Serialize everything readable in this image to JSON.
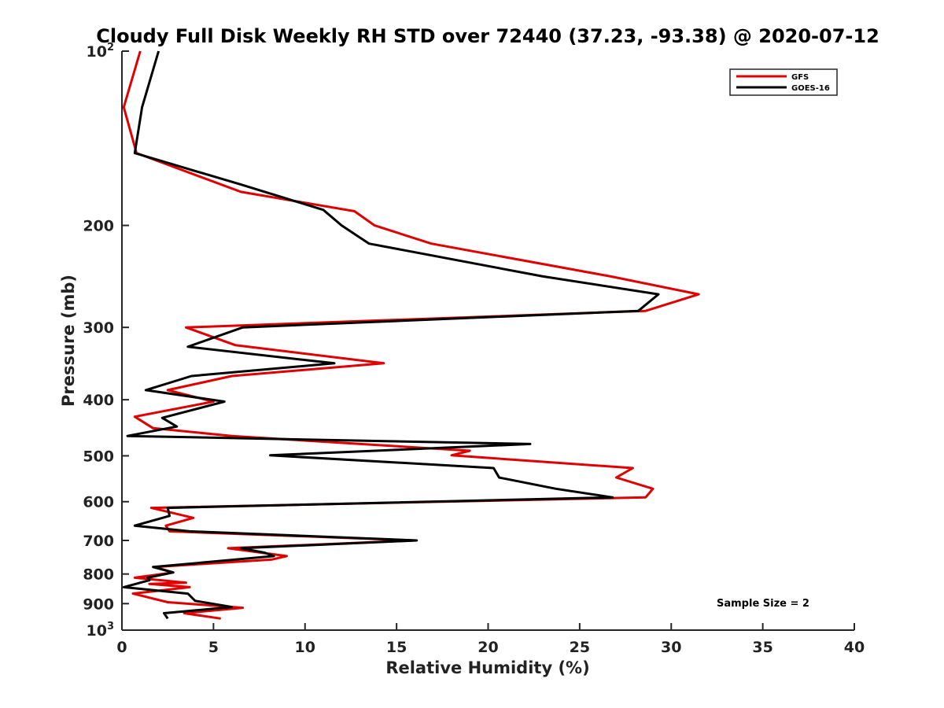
{
  "chart_data": {
    "type": "line",
    "title": "Cloudy Full Disk Weekly RH STD over 72440 (37.23, -93.38) @ 2020-07-12",
    "xlabel": "Relative Humidity (%)",
    "ylabel": "Pressure (mb)",
    "xlim": [
      0,
      40
    ],
    "ylim": [
      100,
      1000
    ],
    "y_scale": "log",
    "y_reversed": true,
    "grid": false,
    "legend_position": "top-right",
    "x_ticks": [
      "0",
      "5",
      "10",
      "15",
      "20",
      "25",
      "30",
      "35",
      "40"
    ],
    "y_ticks": [
      {
        "value": 100,
        "base": "10",
        "exp": "2"
      },
      {
        "value": 200,
        "label": "200"
      },
      {
        "value": 300,
        "label": "300"
      },
      {
        "value": 400,
        "label": "400"
      },
      {
        "value": 500,
        "label": "500"
      },
      {
        "value": 600,
        "label": "600"
      },
      {
        "value": 700,
        "label": "700"
      },
      {
        "value": 800,
        "label": "800"
      },
      {
        "value": 900,
        "label": "900"
      },
      {
        "value": 1000,
        "base": "10",
        "exp": "3"
      }
    ],
    "series": [
      {
        "name": "GFS",
        "color": "#e00000",
        "points": [
          [
            1.0,
            100
          ],
          [
            0.1,
            125
          ],
          [
            0.8,
            150
          ],
          [
            6.5,
            175
          ],
          [
            12.7,
            189
          ],
          [
            13.8,
            200
          ],
          [
            16.9,
            215
          ],
          [
            26.7,
            245
          ],
          [
            31.5,
            263
          ],
          [
            28.6,
            281
          ],
          [
            3.5,
            300
          ],
          [
            6.2,
            322
          ],
          [
            14.3,
            346
          ],
          [
            6.0,
            364
          ],
          [
            2.5,
            385
          ],
          [
            5.0,
            403
          ],
          [
            0.7,
            428
          ],
          [
            1.7,
            448
          ],
          [
            6.0,
            462
          ],
          [
            19.0,
            490
          ],
          [
            18.0,
            499
          ],
          [
            27.9,
            525
          ],
          [
            27.0,
            545
          ],
          [
            29.0,
            570
          ],
          [
            28.6,
            590
          ],
          [
            1.6,
            615
          ],
          [
            3.9,
            640
          ],
          [
            2.4,
            660
          ],
          [
            2.6,
            675
          ],
          [
            16.0,
            700
          ],
          [
            5.8,
            722
          ],
          [
            9.0,
            745
          ],
          [
            8.2,
            755
          ],
          [
            1.8,
            778
          ],
          [
            2.8,
            795
          ],
          [
            0.7,
            812
          ],
          [
            3.5,
            828
          ],
          [
            1.5,
            832
          ],
          [
            3.7,
            843
          ],
          [
            0.6,
            865
          ],
          [
            2.5,
            895
          ],
          [
            6.6,
            915
          ],
          [
            3.4,
            935
          ],
          [
            5.4,
            955
          ]
        ]
      },
      {
        "name": "GOES-16",
        "color": "#000000",
        "points": [
          [
            2.0,
            100
          ],
          [
            1.1,
            125
          ],
          [
            0.7,
            150
          ],
          [
            6.5,
            170
          ],
          [
            11.0,
            188
          ],
          [
            12.0,
            200
          ],
          [
            13.5,
            215
          ],
          [
            23.0,
            245
          ],
          [
            29.3,
            263
          ],
          [
            28.2,
            281
          ],
          [
            6.6,
            300
          ],
          [
            3.6,
            324
          ],
          [
            11.6,
            346
          ],
          [
            3.8,
            364
          ],
          [
            1.3,
            385
          ],
          [
            5.6,
            403
          ],
          [
            2.2,
            430
          ],
          [
            3.0,
            445
          ],
          [
            0.3,
            462
          ],
          [
            22.3,
            477
          ],
          [
            8.1,
            499
          ],
          [
            20.3,
            525
          ],
          [
            20.6,
            545
          ],
          [
            23.7,
            570
          ],
          [
            26.8,
            590
          ],
          [
            2.5,
            615
          ],
          [
            2.6,
            635
          ],
          [
            0.7,
            660
          ],
          [
            3.7,
            675
          ],
          [
            16.1,
            700
          ],
          [
            6.5,
            722
          ],
          [
            7.8,
            735
          ],
          [
            8.3,
            745
          ],
          [
            1.7,
            778
          ],
          [
            2.8,
            795
          ],
          [
            1.4,
            812
          ],
          [
            1.5,
            820
          ],
          [
            0.1,
            843
          ],
          [
            3.6,
            865
          ],
          [
            4.0,
            890
          ],
          [
            6.0,
            912
          ],
          [
            2.3,
            935
          ],
          [
            2.5,
            955
          ]
        ]
      }
    ],
    "legend": [
      "GFS",
      "GOES-16"
    ],
    "annotations": [
      {
        "text": "Sample Size = 2"
      }
    ]
  }
}
